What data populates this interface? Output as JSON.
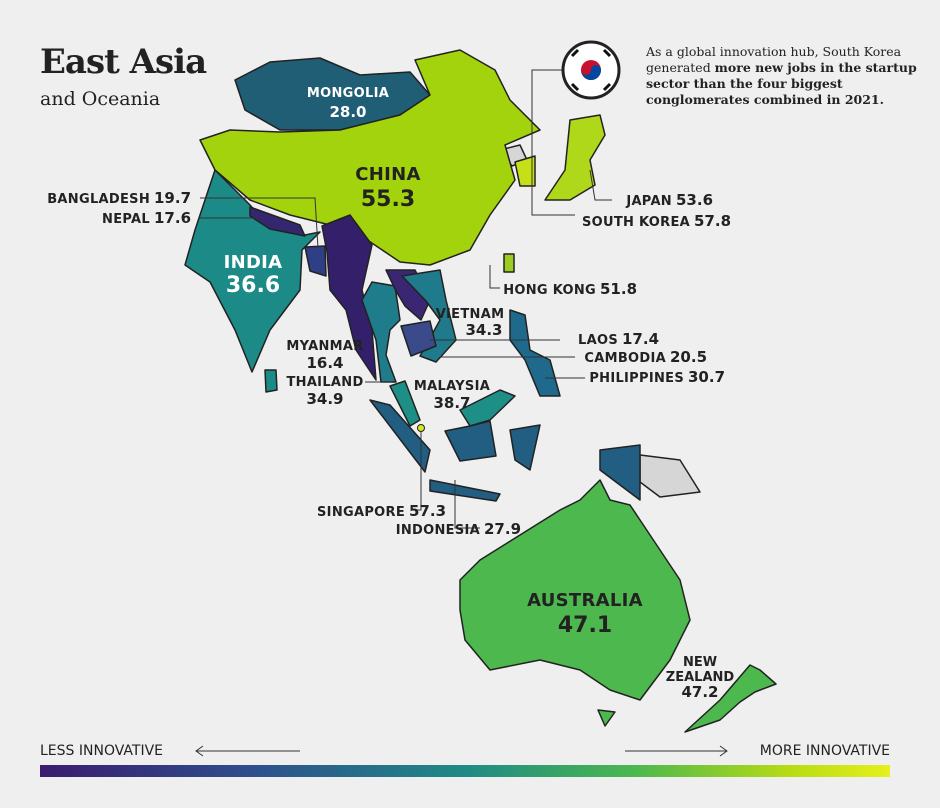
{
  "header": {
    "title": "East Asia",
    "subtitle": "and Oceania"
  },
  "annotation": {
    "text": "As a global innovation hub, South Korea generated ",
    "emphasis": "more new jobs in the startup sector than the four biggest conglomerates combined in 2021."
  },
  "regions": [
    {
      "name": "MONGOLIA",
      "score": 28,
      "score_label": "28.0",
      "color": "#1f5e74"
    },
    {
      "name": "CHINA",
      "score": 55.3,
      "color": "#a3d30c"
    },
    {
      "name": "INDIA",
      "score": 36.6,
      "color": "#1c8a86"
    },
    {
      "name": "BANGLADESH",
      "score": 19.7,
      "color": "#2e3f86"
    },
    {
      "name": "NEPAL",
      "score": 17.6,
      "color": "#35276f"
    },
    {
      "name": "JAPAN",
      "score": 53.6,
      "color": "#b0d81a"
    },
    {
      "name": "SOUTH KOREA",
      "score": 57.8,
      "color": "#c6e018"
    },
    {
      "name": "HONG KONG",
      "score": 51.8,
      "color": "#9ccd1f"
    },
    {
      "name": "VIETNAM",
      "score": 34.3,
      "color": "#1f7a8c"
    },
    {
      "name": "LAOS",
      "score": 17.4,
      "color": "#3a2673"
    },
    {
      "name": "MYANMAR",
      "score": 16.4,
      "color": "#341f6b"
    },
    {
      "name": "CAMBODIA",
      "score": 20.5,
      "color": "#3a4a8a"
    },
    {
      "name": "THAILAND",
      "score": 34.9,
      "color": "#1f7d8b"
    },
    {
      "name": "PHILIPPINES",
      "score": 30.7,
      "color": "#1f6a8c"
    },
    {
      "name": "MALAYSIA",
      "score": 38.7,
      "color": "#1e8f87"
    },
    {
      "name": "SINGAPORE",
      "score": 57.3,
      "color": "#d9e81a"
    },
    {
      "name": "INDONESIA",
      "score": 27.9,
      "color": "#225d82"
    },
    {
      "name": "AUSTRALIA",
      "score": 47.1,
      "color": "#4cb84e"
    },
    {
      "name": "NEW ZEALAND",
      "score": 47.2,
      "color": "#4cb84e"
    }
  ],
  "legend": {
    "low": "LESS INNOVATIVE",
    "high": "MORE INNOVATIVE"
  }
}
